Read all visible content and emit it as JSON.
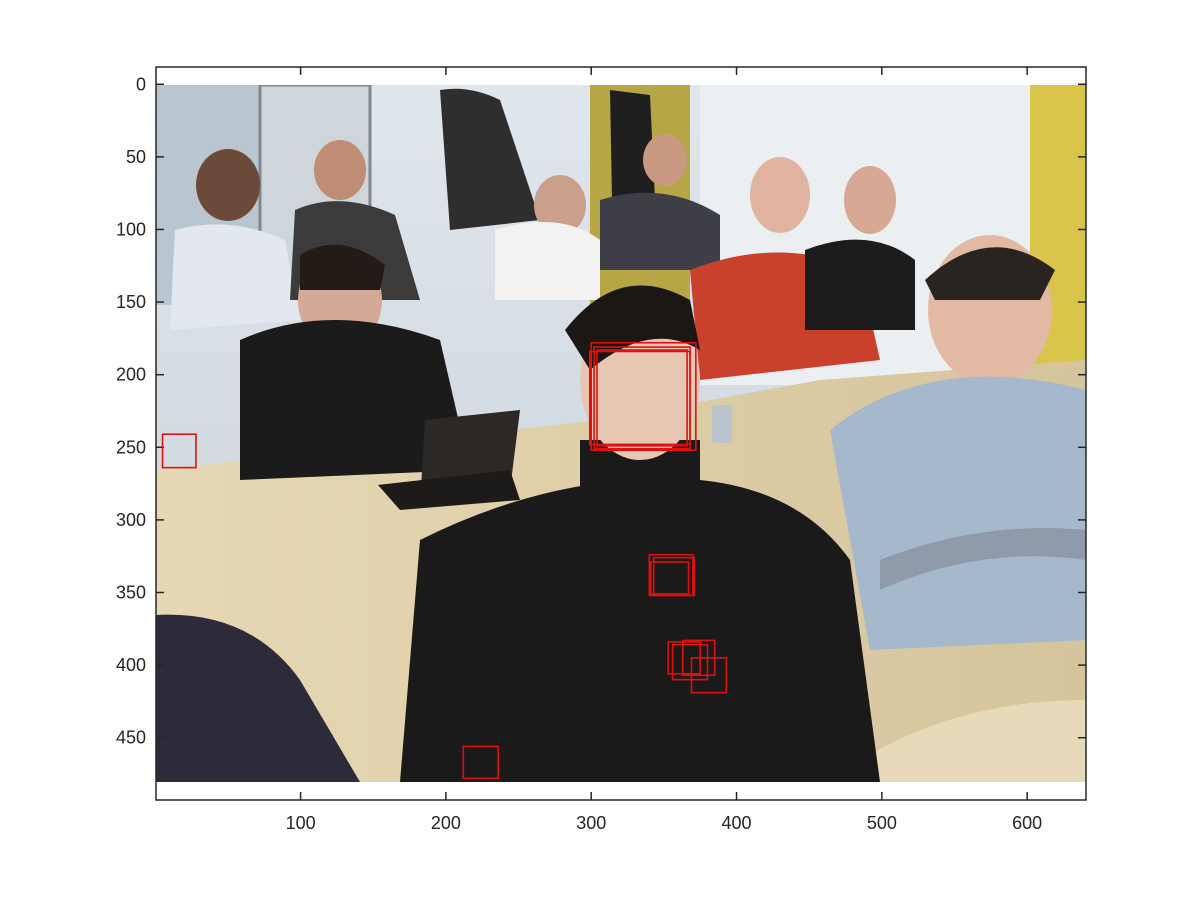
{
  "figure": {
    "type": "image_with_detections",
    "image_description_label": "classroom photo",
    "x_axis": {
      "range": [
        0.5,
        640.5
      ],
      "ticks": [
        100,
        200,
        300,
        400,
        500,
        600
      ]
    },
    "y_axis": {
      "range": [
        0.5,
        480.5
      ],
      "direction": "reverse",
      "ticks": [
        0,
        50,
        100,
        150,
        200,
        250,
        300,
        350,
        400,
        450
      ]
    },
    "box_color": "#e01010",
    "detections": [
      {
        "label": "face-box-1",
        "x": 300,
        "y": 178,
        "w": 72,
        "h": 74
      },
      {
        "label": "face-box-2",
        "x": 302,
        "y": 181,
        "w": 66,
        "h": 70
      },
      {
        "label": "face-box-3",
        "x": 304,
        "y": 183,
        "w": 62,
        "h": 66
      },
      {
        "label": "face-box-4",
        "x": 299,
        "y": 184,
        "w": 69,
        "h": 64
      },
      {
        "label": "chest-box-1",
        "x": 340,
        "y": 324,
        "w": 30,
        "h": 28
      },
      {
        "label": "chest-box-2",
        "x": 343,
        "y": 326,
        "w": 28,
        "h": 26
      },
      {
        "label": "chest-box-3",
        "x": 341,
        "y": 329,
        "w": 26,
        "h": 22
      },
      {
        "label": "shirt-box-1",
        "x": 353,
        "y": 384,
        "w": 22,
        "h": 22
      },
      {
        "label": "shirt-box-2",
        "x": 356,
        "y": 386,
        "w": 24,
        "h": 24
      },
      {
        "label": "shirt-box-3",
        "x": 363,
        "y": 383,
        "w": 22,
        "h": 24
      },
      {
        "label": "shirt-box-4",
        "x": 369,
        "y": 395,
        "w": 24,
        "h": 24
      },
      {
        "label": "left-edge-box",
        "x": 5,
        "y": 241,
        "w": 23,
        "h": 23
      },
      {
        "label": "bottom-box",
        "x": 212,
        "y": 456,
        "w": 24,
        "h": 22
      }
    ]
  }
}
